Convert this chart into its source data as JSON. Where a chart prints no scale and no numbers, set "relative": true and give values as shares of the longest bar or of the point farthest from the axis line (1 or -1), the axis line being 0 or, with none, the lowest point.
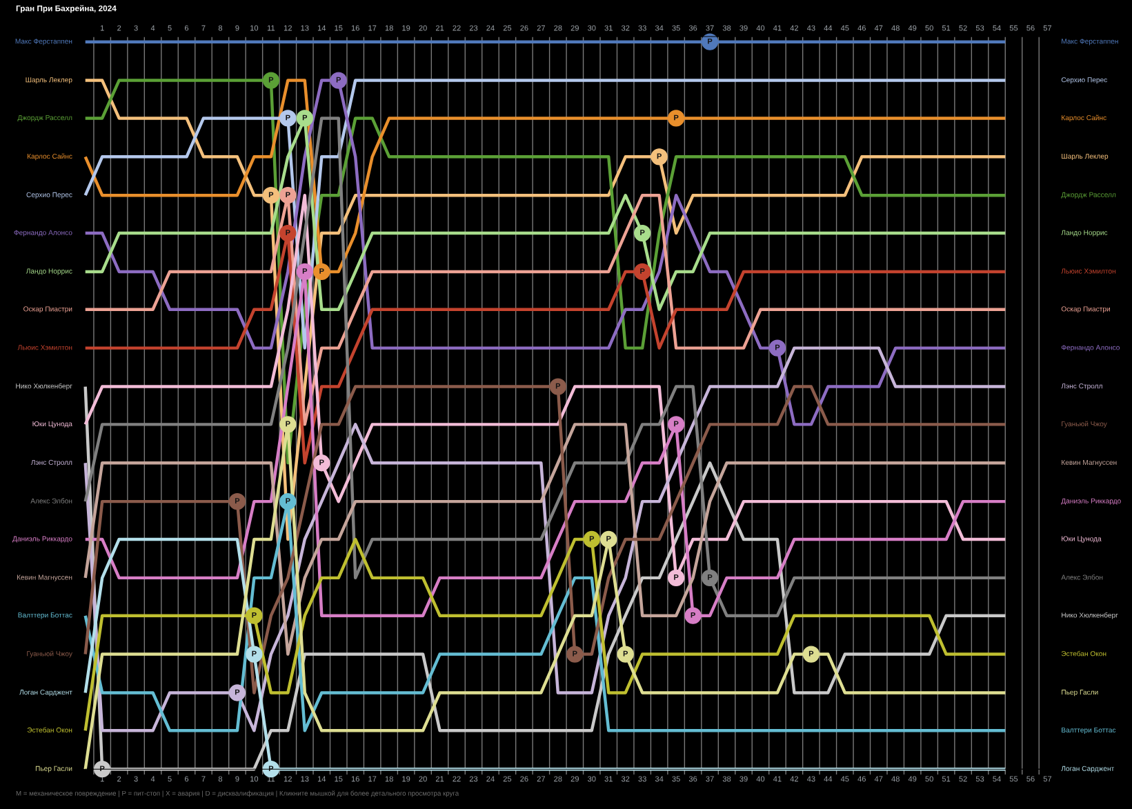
{
  "chart_data": {
    "type": "line",
    "title": "Гран При Бахрейна, 2024",
    "annotations": [
      "M = механическое повреждение | P = пит-стоп | X = авария | D = дисквалификация | Кликните мышкой для более детального просмотра круга",
      {
        "text": "P",
        "x": 37,
        "y": 1
      },
      {
        "text": "P",
        "x": 11,
        "y": 0.789
      },
      {
        "text": "P",
        "x": 34,
        "y": 0.842
      },
      {
        "text": "P",
        "x": 11,
        "y": 0.947
      },
      {
        "text": "P",
        "x": 14,
        "y": 0.684
      },
      {
        "text": "P",
        "x": 35,
        "y": 0.895
      },
      {
        "text": "P",
        "x": 12,
        "y": 0.895
      },
      {
        "text": "P",
        "x": 15,
        "y": 0.947
      },
      {
        "text": "P",
        "x": 41,
        "y": 0.579
      },
      {
        "text": "P",
        "x": 13,
        "y": 0.895
      },
      {
        "text": "P",
        "x": 33,
        "y": 0.737
      },
      {
        "text": "P",
        "x": 12,
        "y": 0.789
      },
      {
        "text": "P",
        "x": 12,
        "y": 0.737
      },
      {
        "text": "P",
        "x": 33,
        "y": 0.684
      },
      {
        "text": "P",
        "x": 1,
        "y": 0
      },
      {
        "text": "P",
        "x": 14,
        "y": 0.421
      },
      {
        "text": "P",
        "x": 35,
        "y": 0.263
      },
      {
        "text": "P",
        "x": 9,
        "y": 0.105
      },
      {
        "text": "P",
        "x": 37,
        "y": 0.263
      },
      {
        "text": "P",
        "x": 13,
        "y": 0.684
      },
      {
        "text": "P",
        "x": 35,
        "y": 0.474
      },
      {
        "text": "P",
        "x": 36,
        "y": 0.211
      },
      {
        "text": "P",
        "x": 12,
        "y": 0.368
      },
      {
        "text": "P",
        "x": 9,
        "y": 0.368
      },
      {
        "text": "P",
        "x": 28,
        "y": 0.526
      },
      {
        "text": "P",
        "x": 29,
        "y": 0.158
      },
      {
        "text": "P",
        "x": 10,
        "y": 0.158
      },
      {
        "text": "P",
        "x": 11,
        "y": 0
      },
      {
        "text": "P",
        "x": 10,
        "y": 0.211
      },
      {
        "text": "P",
        "x": 30,
        "y": 0.316
      },
      {
        "text": "P",
        "x": 12,
        "y": 0.474
      },
      {
        "text": "P",
        "x": 31,
        "y": 0.316
      },
      {
        "text": "P",
        "x": 32,
        "y": 0.158
      },
      {
        "text": "P",
        "x": 43,
        "y": 0.158
      }
    ],
    "relative": true,
    "tick_labels": "x",
    "grid": "x",
    "xlim": [
      0,
      57.5
    ],
    "x2lim": [
      0,
      57.5
    ],
    "xticks": [
      1,
      2,
      3,
      4,
      5,
      6,
      7,
      8,
      9,
      10,
      11,
      12,
      13,
      14,
      15,
      16,
      17,
      18,
      19,
      20,
      21,
      22,
      23,
      24,
      25,
      26,
      27,
      28,
      29,
      30,
      31,
      32,
      33,
      34,
      35,
      36,
      37,
      38,
      39,
      40,
      41,
      42,
      43,
      44,
      45,
      46,
      47,
      48,
      49,
      50,
      51,
      52,
      53,
      54,
      55,
      56,
      57
    ],
    "x2ticks": [
      1,
      2,
      3,
      4,
      5,
      6,
      7,
      8,
      9,
      10,
      11,
      12,
      13,
      14,
      15,
      16,
      17,
      18,
      19,
      20,
      21,
      22,
      23,
      24,
      25,
      26,
      27,
      28,
      29,
      30,
      31,
      32,
      33,
      34,
      35,
      36,
      37,
      38,
      39,
      40,
      41,
      42,
      43,
      44,
      45,
      46,
      47,
      48,
      49,
      50,
      51,
      52,
      53,
      54,
      55,
      56,
      57
    ],
    "x": [
      0,
      1,
      2,
      3,
      4,
      5,
      6,
      7,
      8,
      9,
      10,
      11,
      12,
      13,
      14,
      15,
      16,
      17,
      18,
      19,
      20,
      21,
      22,
      23,
      24,
      25,
      26,
      27,
      28,
      29,
      30,
      31,
      32,
      33,
      34,
      35,
      36,
      37,
      38,
      39,
      40,
      41,
      42,
      43,
      44,
      45,
      46,
      47,
      48,
      49,
      50,
      51,
      52,
      53,
      54,
      54.5
    ],
    "series": [
      {
        "name": "Макс Ферстаппен",
        "color": "#5079bb",
        "values": [
          1,
          1,
          1,
          1,
          1,
          1,
          1,
          1,
          1,
          1,
          1,
          1,
          1,
          1,
          1,
          1,
          1,
          1,
          1,
          1,
          1,
          1,
          1,
          1,
          1,
          1,
          1,
          1,
          1,
          1,
          1,
          1,
          1,
          1,
          1,
          1,
          1,
          1,
          1,
          1,
          1,
          1,
          1,
          1,
          1,
          1,
          1,
          1,
          1,
          1,
          1,
          1,
          1,
          1,
          1,
          1
        ]
      },
      {
        "name": "Шарль Леклер",
        "color": "#f4c07c",
        "values": [
          0.947,
          0.947,
          0.895,
          0.895,
          0.895,
          0.895,
          0.895,
          0.842,
          0.842,
          0.842,
          0.789,
          0.789,
          0.316,
          0.526,
          0.737,
          0.737,
          0.789,
          0.789,
          0.789,
          0.789,
          0.789,
          0.789,
          0.789,
          0.789,
          0.789,
          0.789,
          0.789,
          0.789,
          0.789,
          0.789,
          0.789,
          0.789,
          0.842,
          0.842,
          0.842,
          0.737,
          0.789,
          0.789,
          0.789,
          0.789,
          0.789,
          0.789,
          0.789,
          0.789,
          0.789,
          0.789,
          0.842,
          0.842,
          0.842,
          0.842,
          0.842,
          0.842,
          0.842,
          0.842,
          0.842,
          0.842
        ]
      },
      {
        "name": "Джордж Расселл",
        "color": "#5ba036",
        "values": [
          0.895,
          0.895,
          0.947,
          0.947,
          0.947,
          0.947,
          0.947,
          0.947,
          0.947,
          0.947,
          0.947,
          0.947,
          0.421,
          0.632,
          0.789,
          0.789,
          0.895,
          0.895,
          0.842,
          0.842,
          0.842,
          0.842,
          0.842,
          0.842,
          0.842,
          0.842,
          0.842,
          0.842,
          0.842,
          0.842,
          0.842,
          0.842,
          0.579,
          0.579,
          0.737,
          0.842,
          0.842,
          0.842,
          0.842,
          0.842,
          0.842,
          0.842,
          0.842,
          0.842,
          0.842,
          0.842,
          0.789,
          0.789,
          0.789,
          0.789,
          0.789,
          0.789,
          0.789,
          0.789,
          0.789,
          0.789
        ]
      },
      {
        "name": "Карлос Сайнс",
        "color": "#e98f2c",
        "values": [
          0.842,
          0.789,
          0.789,
          0.789,
          0.789,
          0.789,
          0.789,
          0.789,
          0.789,
          0.789,
          0.842,
          0.842,
          0.947,
          0.947,
          0.684,
          0.684,
          0.737,
          0.842,
          0.895,
          0.895,
          0.895,
          0.895,
          0.895,
          0.895,
          0.895,
          0.895,
          0.895,
          0.895,
          0.895,
          0.895,
          0.895,
          0.895,
          0.895,
          0.895,
          0.895,
          0.895,
          0.895,
          0.895,
          0.895,
          0.895,
          0.895,
          0.895,
          0.895,
          0.895,
          0.895,
          0.895,
          0.895,
          0.895,
          0.895,
          0.895,
          0.895,
          0.895,
          0.895,
          0.895,
          0.895,
          0.895
        ]
      },
      {
        "name": "Серхио Перес",
        "color": "#b4c8ec",
        "values": [
          0.789,
          0.842,
          0.842,
          0.842,
          0.842,
          0.842,
          0.842,
          0.895,
          0.895,
          0.895,
          0.895,
          0.895,
          0.895,
          0.579,
          0.842,
          0.842,
          0.947,
          0.947,
          0.947,
          0.947,
          0.947,
          0.947,
          0.947,
          0.947,
          0.947,
          0.947,
          0.947,
          0.947,
          0.947,
          0.947,
          0.947,
          0.947,
          0.947,
          0.947,
          0.947,
          0.947,
          0.947,
          0.947,
          0.947,
          0.947,
          0.947,
          0.947,
          0.947,
          0.947,
          0.947,
          0.947,
          0.947,
          0.947,
          0.947,
          0.947,
          0.947,
          0.947,
          0.947,
          0.947,
          0.947,
          0.947
        ]
      },
      {
        "name": "Фернандо Алонсо",
        "color": "#8d6cc2",
        "values": [
          0.737,
          0.737,
          0.684,
          0.684,
          0.684,
          0.632,
          0.632,
          0.632,
          0.632,
          0.632,
          0.579,
          0.579,
          0.684,
          0.842,
          0.947,
          0.947,
          0.842,
          0.579,
          0.579,
          0.579,
          0.579,
          0.579,
          0.579,
          0.579,
          0.579,
          0.579,
          0.579,
          0.579,
          0.579,
          0.579,
          0.579,
          0.579,
          0.632,
          0.632,
          0.684,
          0.789,
          0.737,
          0.684,
          0.684,
          0.632,
          0.579,
          0.579,
          0.474,
          0.474,
          0.526,
          0.526,
          0.526,
          0.526,
          0.579,
          0.579,
          0.579,
          0.579,
          0.579,
          0.579,
          0.579,
          0.579
        ]
      },
      {
        "name": "Ландо Норрис",
        "color": "#a8dd8c",
        "values": [
          0.684,
          0.684,
          0.737,
          0.737,
          0.737,
          0.737,
          0.737,
          0.737,
          0.737,
          0.737,
          0.737,
          0.737,
          0.842,
          0.895,
          0.632,
          0.632,
          0.684,
          0.737,
          0.737,
          0.737,
          0.737,
          0.737,
          0.737,
          0.737,
          0.737,
          0.737,
          0.737,
          0.737,
          0.737,
          0.737,
          0.737,
          0.737,
          0.789,
          0.737,
          0.632,
          0.684,
          0.684,
          0.737,
          0.737,
          0.737,
          0.737,
          0.737,
          0.737,
          0.737,
          0.737,
          0.737,
          0.737,
          0.737,
          0.737,
          0.737,
          0.737,
          0.737,
          0.737,
          0.737,
          0.737,
          0.737
        ]
      },
      {
        "name": "Оскар Пиастри",
        "color": "#eda294",
        "values": [
          0.632,
          0.632,
          0.632,
          0.632,
          0.632,
          0.684,
          0.684,
          0.684,
          0.684,
          0.684,
          0.684,
          0.684,
          0.789,
          0.474,
          0.579,
          0.579,
          0.632,
          0.684,
          0.684,
          0.684,
          0.684,
          0.684,
          0.684,
          0.684,
          0.684,
          0.684,
          0.684,
          0.684,
          0.684,
          0.684,
          0.684,
          0.684,
          0.737,
          0.789,
          0.789,
          0.579,
          0.579,
          0.579,
          0.579,
          0.579,
          0.632,
          0.632,
          0.632,
          0.632,
          0.632,
          0.632,
          0.632,
          0.632,
          0.632,
          0.632,
          0.632,
          0.632,
          0.632,
          0.632,
          0.632,
          0.632
        ]
      },
      {
        "name": "Льюис Хэмилтон",
        "color": "#c4432e",
        "values": [
          0.579,
          0.579,
          0.579,
          0.579,
          0.579,
          0.579,
          0.579,
          0.579,
          0.579,
          0.579,
          0.632,
          0.632,
          0.737,
          0.421,
          0.526,
          0.526,
          0.579,
          0.632,
          0.632,
          0.632,
          0.632,
          0.632,
          0.632,
          0.632,
          0.632,
          0.632,
          0.632,
          0.632,
          0.632,
          0.632,
          0.632,
          0.632,
          0.684,
          0.684,
          0.579,
          0.632,
          0.632,
          0.632,
          0.632,
          0.684,
          0.684,
          0.684,
          0.684,
          0.684,
          0.684,
          0.684,
          0.684,
          0.684,
          0.684,
          0.684,
          0.684,
          0.684,
          0.684,
          0.684,
          0.684,
          0.684
        ]
      },
      {
        "name": "Нико Хюлкенберг",
        "color": "#c9c9c9",
        "values": [
          0.526,
          0,
          0,
          0,
          0,
          0,
          0,
          0,
          0,
          0,
          0,
          0.053,
          0.053,
          0.158,
          0.158,
          0.158,
          0.158,
          0.158,
          0.158,
          0.158,
          0.158,
          0.053,
          0.053,
          0.053,
          0.053,
          0.053,
          0.053,
          0.053,
          0.053,
          0.053,
          0.053,
          0.158,
          0.211,
          0.263,
          0.263,
          0.316,
          0.368,
          0.421,
          0.368,
          0.316,
          0.316,
          0.316,
          0.105,
          0.105,
          0.105,
          0.158,
          0.158,
          0.158,
          0.158,
          0.158,
          0.158,
          0.211,
          0.211,
          0.211,
          0.211,
          0.211
        ]
      },
      {
        "name": "Юки Цунода",
        "color": "#f2bcd7",
        "values": [
          0.474,
          0.526,
          0.526,
          0.526,
          0.526,
          0.526,
          0.526,
          0.526,
          0.526,
          0.526,
          0.526,
          0.526,
          0.632,
          0.789,
          0.421,
          0.368,
          0.421,
          0.474,
          0.474,
          0.474,
          0.474,
          0.474,
          0.474,
          0.474,
          0.474,
          0.474,
          0.474,
          0.474,
          0.474,
          0.526,
          0.526,
          0.526,
          0.526,
          0.526,
          0.526,
          0.263,
          0.316,
          0.316,
          0.316,
          0.368,
          0.368,
          0.368,
          0.368,
          0.368,
          0.368,
          0.368,
          0.368,
          0.368,
          0.368,
          0.368,
          0.368,
          0.368,
          0.316,
          0.316,
          0.316,
          0.316
        ]
      },
      {
        "name": "Лэнс Стролл",
        "color": "#c7b5d9",
        "values": [
          0.421,
          0.053,
          0.053,
          0.053,
          0.053,
          0.105,
          0.105,
          0.105,
          0.105,
          0.105,
          0.053,
          0.158,
          0.211,
          0.316,
          0.368,
          0.421,
          0.474,
          0.421,
          0.421,
          0.421,
          0.421,
          0.421,
          0.421,
          0.421,
          0.421,
          0.421,
          0.421,
          0.421,
          0.105,
          0.105,
          0.105,
          0.211,
          0.263,
          0.368,
          0.368,
          0.421,
          0.474,
          0.526,
          0.526,
          0.526,
          0.526,
          0.526,
          0.579,
          0.579,
          0.579,
          0.579,
          0.579,
          0.579,
          0.526,
          0.526,
          0.526,
          0.526,
          0.526,
          0.526,
          0.526,
          0.526
        ]
      },
      {
        "name": "Алекс Элбон",
        "color": "#808080",
        "values": [
          0.368,
          0.474,
          0.474,
          0.474,
          0.474,
          0.474,
          0.474,
          0.474,
          0.474,
          0.474,
          0.474,
          0.474,
          0.579,
          0.737,
          0.895,
          0.895,
          0.263,
          0.316,
          0.316,
          0.316,
          0.316,
          0.316,
          0.316,
          0.316,
          0.316,
          0.316,
          0.316,
          0.316,
          0.368,
          0.421,
          0.421,
          0.421,
          0.421,
          0.474,
          0.474,
          0.526,
          0.526,
          0.263,
          0.211,
          0.211,
          0.211,
          0.211,
          0.263,
          0.263,
          0.263,
          0.263,
          0.263,
          0.263,
          0.263,
          0.263,
          0.263,
          0.263,
          0.263,
          0.263,
          0.263,
          0.263
        ]
      },
      {
        "name": "Даниэль Риккардо",
        "color": "#d77ec6",
        "values": [
          0.316,
          0.316,
          0.263,
          0.263,
          0.263,
          0.263,
          0.263,
          0.263,
          0.263,
          0.263,
          0.368,
          0.368,
          0.526,
          0.684,
          0.211,
          0.211,
          0.211,
          0.211,
          0.211,
          0.211,
          0.211,
          0.263,
          0.263,
          0.263,
          0.263,
          0.263,
          0.263,
          0.263,
          0.316,
          0.368,
          0.368,
          0.368,
          0.368,
          0.421,
          0.421,
          0.474,
          0.211,
          0.211,
          0.263,
          0.263,
          0.263,
          0.263,
          0.316,
          0.316,
          0.316,
          0.316,
          0.316,
          0.316,
          0.316,
          0.316,
          0.316,
          0.316,
          0.368,
          0.368,
          0.368,
          0.368
        ]
      },
      {
        "name": "Кевин Магнуссен",
        "color": "#c5a59b",
        "values": [
          0.263,
          0.421,
          0.421,
          0.421,
          0.421,
          0.421,
          0.421,
          0.421,
          0.421,
          0.421,
          0.421,
          0.421,
          0.158,
          0.263,
          0.316,
          0.316,
          0.368,
          0.368,
          0.368,
          0.368,
          0.368,
          0.368,
          0.368,
          0.368,
          0.368,
          0.368,
          0.368,
          0.368,
          0.421,
          0.474,
          0.474,
          0.474,
          0.474,
          0.211,
          0.211,
          0.211,
          0.263,
          0.368,
          0.421,
          0.421,
          0.421,
          0.421,
          0.421,
          0.421,
          0.421,
          0.421,
          0.421,
          0.421,
          0.421,
          0.421,
          0.421,
          0.421,
          0.421,
          0.421,
          0.421,
          0.421
        ]
      },
      {
        "name": "Валттери Боттас",
        "color": "#64bdd3",
        "values": [
          0.211,
          0.105,
          0.105,
          0.105,
          0.105,
          0.053,
          0.053,
          0.053,
          0.053,
          0.053,
          0.263,
          0.263,
          0.368,
          0.053,
          0.105,
          0.105,
          0.105,
          0.105,
          0.105,
          0.105,
          0.105,
          0.158,
          0.158,
          0.158,
          0.158,
          0.158,
          0.158,
          0.158,
          0.211,
          0.263,
          0.263,
          0.053,
          0.053,
          0.053,
          0.053,
          0.053,
          0.053,
          0.053,
          0.053,
          0.053,
          0.053,
          0.053,
          0.053,
          0.053,
          0.053,
          0.053,
          0.053,
          0.053,
          0.053,
          0.053,
          0.053,
          0.053,
          0.053,
          0.053,
          0.053,
          0.053
        ]
      },
      {
        "name": "Гуаньюй Чжоу",
        "color": "#8b5b4b",
        "values": [
          0.158,
          0.368,
          0.368,
          0.368,
          0.368,
          0.368,
          0.368,
          0.368,
          0.368,
          0.368,
          0.105,
          0.211,
          0.263,
          0.368,
          0.474,
          0.474,
          0.526,
          0.526,
          0.526,
          0.526,
          0.526,
          0.526,
          0.526,
          0.526,
          0.526,
          0.526,
          0.526,
          0.526,
          0.526,
          0.158,
          0.158,
          0.263,
          0.316,
          0.316,
          0.316,
          0.368,
          0.421,
          0.474,
          0.474,
          0.474,
          0.474,
          0.474,
          0.526,
          0.526,
          0.474,
          0.474,
          0.474,
          0.474,
          0.474,
          0.474,
          0.474,
          0.474,
          0.474,
          0.474,
          0.474,
          0.474
        ]
      },
      {
        "name": "Логан Сарджент",
        "color": "#b3dfea",
        "values": [
          0.105,
          0.263,
          0.316,
          0.316,
          0.316,
          0.316,
          0.316,
          0.316,
          0.316,
          0.316,
          0.158,
          0,
          0,
          0,
          0,
          0,
          0,
          0,
          0,
          0,
          0,
          0,
          0,
          0,
          0,
          0,
          0,
          0,
          0,
          0,
          0,
          0,
          0,
          0,
          0,
          0,
          0,
          0,
          0,
          0,
          0,
          0,
          0,
          0,
          0,
          0,
          0,
          0,
          0,
          0,
          0,
          0,
          0,
          0,
          0,
          0
        ]
      },
      {
        "name": "Эстебан Окон",
        "color": "#bfbf30",
        "values": [
          0.053,
          0.211,
          0.211,
          0.211,
          0.211,
          0.211,
          0.211,
          0.211,
          0.211,
          0.211,
          0.211,
          0.105,
          0.105,
          0.211,
          0.263,
          0.263,
          0.316,
          0.263,
          0.263,
          0.263,
          0.263,
          0.211,
          0.211,
          0.211,
          0.211,
          0.211,
          0.211,
          0.211,
          0.263,
          0.316,
          0.316,
          0.105,
          0.105,
          0.158,
          0.158,
          0.158,
          0.158,
          0.158,
          0.158,
          0.158,
          0.158,
          0.158,
          0.211,
          0.211,
          0.211,
          0.211,
          0.211,
          0.211,
          0.211,
          0.211,
          0.211,
          0.158,
          0.158,
          0.158,
          0.158,
          0.158
        ]
      },
      {
        "name": "Пьер Гасли",
        "color": "#dede92",
        "values": [
          0,
          0.158,
          0.158,
          0.158,
          0.158,
          0.158,
          0.158,
          0.158,
          0.158,
          0.158,
          0.316,
          0.316,
          0.474,
          0.105,
          0.053,
          0.053,
          0.053,
          0.053,
          0.053,
          0.053,
          0.053,
          0.105,
          0.105,
          0.105,
          0.105,
          0.105,
          0.105,
          0.105,
          0.158,
          0.211,
          0.211,
          0.316,
          0.158,
          0.105,
          0.105,
          0.105,
          0.105,
          0.105,
          0.105,
          0.105,
          0.105,
          0.105,
          0.158,
          0.158,
          0.158,
          0.105,
          0.105,
          0.105,
          0.105,
          0.105,
          0.105,
          0.105,
          0.105,
          0.105,
          0.105,
          0.105
        ]
      }
    ]
  }
}
